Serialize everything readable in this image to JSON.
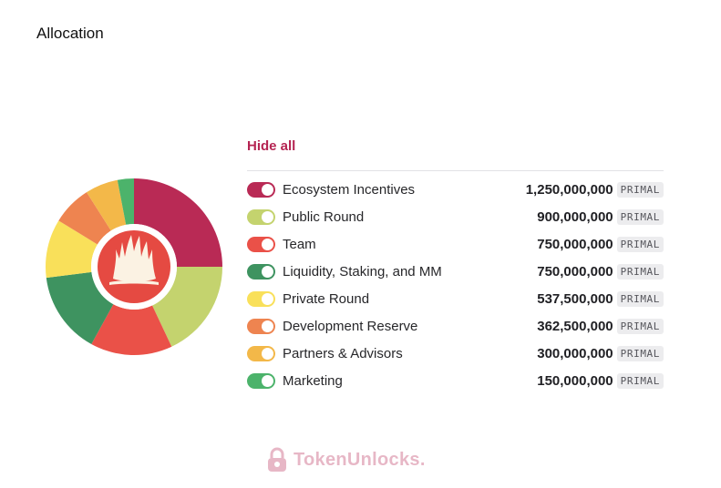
{
  "page": {
    "title": "Allocation"
  },
  "legend": {
    "hide_all_label": "Hide all",
    "items": [
      {
        "label": "Ecosystem Incentives",
        "amount": "1,250,000,000",
        "unit": "PRIMAL",
        "color": "#b92a55"
      },
      {
        "label": "Public Round",
        "amount": "900,000,000",
        "unit": "PRIMAL",
        "color": "#c4d36e"
      },
      {
        "label": "Team",
        "amount": "750,000,000",
        "unit": "PRIMAL",
        "color": "#ea5148"
      },
      {
        "label": "Liquidity, Staking, and MM",
        "amount": "750,000,000",
        "unit": "PRIMAL",
        "color": "#3e9360"
      },
      {
        "label": "Private Round",
        "amount": "537,500,000",
        "unit": "PRIMAL",
        "color": "#f9e05a"
      },
      {
        "label": "Development Reserve",
        "amount": "362,500,000",
        "unit": "PRIMAL",
        "color": "#ee8450"
      },
      {
        "label": "Partners & Advisors",
        "amount": "300,000,000",
        "unit": "PRIMAL",
        "color": "#f3b849"
      },
      {
        "label": "Marketing",
        "amount": "150,000,000",
        "unit": "PRIMAL",
        "color": "#4cb36b"
      }
    ]
  },
  "center_logo": {
    "icon": "primal-logo-icon",
    "color": "#e54a42"
  },
  "watermark": {
    "brand": "TokenUnlocks",
    "suffix": ".",
    "icon": "lock-icon"
  },
  "chart_data": {
    "type": "pie",
    "labels": [
      "Ecosystem Incentives",
      "Public Round",
      "Team",
      "Liquidity, Staking, and MM",
      "Private Round",
      "Development Reserve",
      "Partners & Advisors",
      "Marketing"
    ],
    "values": [
      1250000000,
      900000000,
      750000000,
      750000000,
      537500000,
      362500000,
      300000000,
      150000000
    ],
    "colors": [
      "#b92a55",
      "#c4d36e",
      "#ea5148",
      "#3e9360",
      "#f9e05a",
      "#ee8450",
      "#f3b849",
      "#4cb36b"
    ],
    "title": "Allocation",
    "unit": "PRIMAL",
    "legend": "right"
  }
}
